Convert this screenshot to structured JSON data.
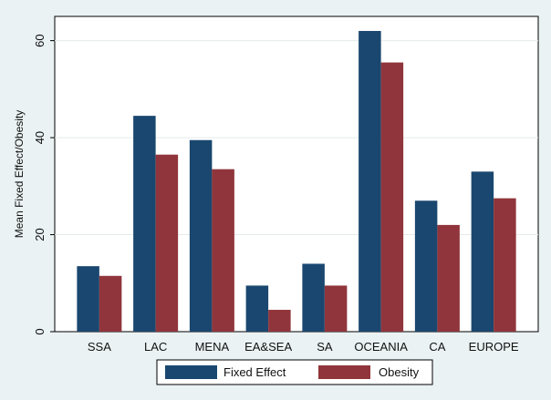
{
  "chart_data": {
    "type": "bar",
    "title": "",
    "xlabel": "",
    "ylabel": "Mean Fixed Effect/Obesity",
    "ylim": [
      0,
      65
    ],
    "yticks": [
      0,
      20,
      40,
      60
    ],
    "grid": true,
    "legend_position": "bottom",
    "categories": [
      "SSA",
      "LAC",
      "MENA",
      "EA&SEA",
      "SA",
      "OCEANIA",
      "CA",
      "EUROPE"
    ],
    "series": [
      {
        "name": "Fixed Effect",
        "color": "#1a476f",
        "values": [
          13.5,
          44.5,
          39.5,
          9.5,
          14,
          62,
          27,
          33
        ]
      },
      {
        "name": "Obesity",
        "color": "#90353b",
        "values": [
          11.5,
          36.5,
          33.5,
          4.5,
          9.5,
          55.5,
          22,
          27.5
        ]
      }
    ]
  }
}
